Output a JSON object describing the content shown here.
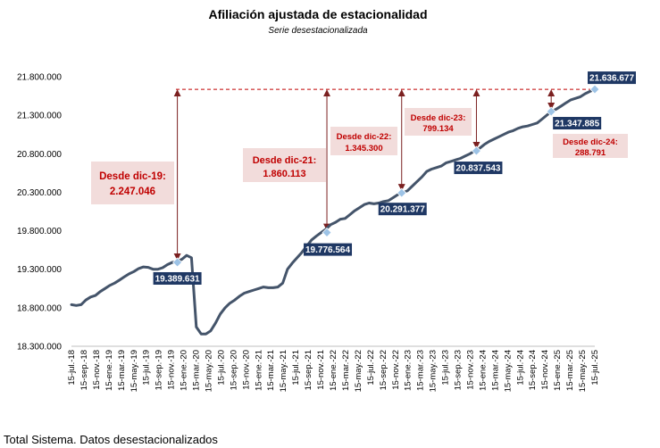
{
  "chart_data": {
    "type": "line",
    "title": "Afiliación ajustada de estacionalidad",
    "subtitle": "Serie desestacionalizada",
    "ylim": [
      18300000,
      21800000
    ],
    "yticks": [
      "18.300.000",
      "18.800.000",
      "19.300.000",
      "19.800.000",
      "20.300.000",
      "20.800.000",
      "21.300.000",
      "21.800.000"
    ],
    "x_tick_labels": [
      "15-jul.-18",
      "15-sep.-18",
      "15-nov.-18",
      "15-ene.-19",
      "15-mar.-19",
      "15-may.-19",
      "15-jul.-19",
      "15-sep.-19",
      "15-nov.-19",
      "15-ene.-20",
      "15-mar.-20",
      "15-may.-20",
      "15-jul.-20",
      "15-sep.-20",
      "15-nov.-20",
      "15-ene.-21",
      "15-mar.-21",
      "15-may.-21",
      "15-jul.-21",
      "15-sep.-21",
      "15-nov.-21",
      "15-ene.-22",
      "15-mar.-22",
      "15-may.-22",
      "15-jul.-22",
      "15-sep.-22",
      "15-nov.-22",
      "15-ene.-23",
      "15-mar.-23",
      "15-may.-23",
      "15-jul.-23",
      "15-sep.-23",
      "15-nov.-23",
      "15-ene.-24",
      "15-mar.-24",
      "15-may.-24",
      "15-jul.-24",
      "15-sep.-24",
      "15-nov.-24",
      "15-ene.-25",
      "15-mar.-25",
      "15-may.-25",
      "15-jul.-25"
    ],
    "series": [
      {
        "values": [
          18840000,
          18830000,
          18840000,
          18900000,
          18940000,
          18960000,
          19010000,
          19050000,
          19090000,
          19120000,
          19160000,
          19200000,
          19240000,
          19270000,
          19310000,
          19330000,
          19325000,
          19300000,
          19300000,
          19320000,
          19360000,
          19389631,
          19400000,
          19430000,
          19480000,
          19450000,
          18550000,
          18460000,
          18460000,
          18500000,
          18600000,
          18720000,
          18800000,
          18860000,
          18900000,
          18950000,
          18990000,
          19010000,
          19030000,
          19050000,
          19070000,
          19060000,
          19060000,
          19070000,
          19120000,
          19300000,
          19380000,
          19450000,
          19520000,
          19600000,
          19680000,
          19730000,
          19776564,
          19820000,
          19880000,
          19910000,
          19950000,
          19960000,
          20010000,
          20060000,
          20100000,
          20140000,
          20160000,
          20150000,
          20160000,
          20180000,
          20190000,
          20230000,
          20270000,
          20291377,
          20320000,
          20380000,
          20440000,
          20500000,
          20570000,
          20600000,
          20620000,
          20640000,
          20680000,
          20700000,
          20720000,
          20740000,
          20770000,
          20800000,
          20837543,
          20870000,
          20920000,
          20960000,
          20990000,
          21020000,
          21050000,
          21080000,
          21100000,
          21130000,
          21150000,
          21160000,
          21180000,
          21200000,
          21250000,
          21300000,
          21347885,
          21380000,
          21420000,
          21460000,
          21500000,
          21520000,
          21540000,
          21580000,
          21610000,
          21636677
        ],
        "color": "#44546a"
      }
    ],
    "markers": [
      {
        "date": "15-dic.-19",
        "value": 19389631,
        "label": "19.389.631"
      },
      {
        "date": "15-dic.-21",
        "value": 19776564,
        "label": "19.776.564"
      },
      {
        "date": "15-dic.-22",
        "value": 20291377,
        "label": "20.291.377"
      },
      {
        "date": "15-dic.-23",
        "value": 20837543,
        "label": "20.837.543"
      },
      {
        "date": "15-dic.-24",
        "value": 21347885,
        "label": "21.347.885"
      },
      {
        "date": "15-jul.-25",
        "value": 21636677,
        "label": "21.636.677"
      }
    ],
    "annotations": [
      {
        "line1": "Desde dic-19:",
        "line2": "2.247.046"
      },
      {
        "line1": "Desde dic-21:",
        "line2": "1.860.113"
      },
      {
        "line1": "Desde dic-22:",
        "line2": "1.345.300"
      },
      {
        "line1": "Desde dic-23:",
        "line2": "799.134"
      },
      {
        "line1": "Desde dic-24:",
        "line2": "288.791"
      }
    ],
    "reference_line": {
      "value": 21636677,
      "style": "dashed",
      "color": "#c00000"
    },
    "colors": {
      "line": "#44546a",
      "marker": "#9dc3e6",
      "label_bg": "#1f3864",
      "annotation_bg": "#f2dcdb",
      "annotation_text": "#c00000",
      "arrow": "#7b2020"
    }
  },
  "footnote": "Total Sistema. Datos desestacionalizados"
}
